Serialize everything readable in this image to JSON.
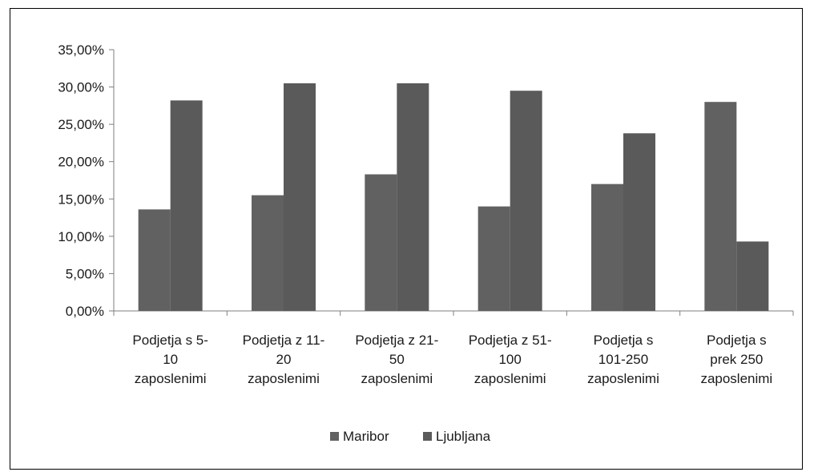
{
  "chart_data": {
    "type": "bar",
    "categories": [
      [
        "Podjetja s 5-",
        "10",
        "zaposlenimi"
      ],
      [
        "Podjetja z 11-",
        "20",
        "zaposlenimi"
      ],
      [
        "Podjetja z 21-",
        "50",
        "zaposlenimi"
      ],
      [
        "Podjetja z 51-",
        "100",
        "zaposlenimi"
      ],
      [
        "Podjetja s",
        "101-250",
        "zaposlenimi"
      ],
      [
        "Podjetja s",
        "prek 250",
        "zaposlenimi"
      ]
    ],
    "series": [
      {
        "name": "Maribor",
        "values": [
          13.6,
          15.5,
          18.3,
          14.0,
          17.0,
          28.0
        ],
        "color": "#616161"
      },
      {
        "name": "Ljubljana",
        "values": [
          28.2,
          30.5,
          30.5,
          29.5,
          23.8,
          9.3
        ],
        "color": "#5a5a5a"
      }
    ],
    "yticks": [
      "0,00%",
      "5,00%",
      "10,00%",
      "15,00%",
      "20,00%",
      "25,00%",
      "30,00%",
      "35,00%"
    ],
    "ylim": [
      0,
      35
    ],
    "ytick_step": 5,
    "grid": false,
    "legend": "bottom",
    "title": "",
    "xlabel": "",
    "ylabel": ""
  }
}
